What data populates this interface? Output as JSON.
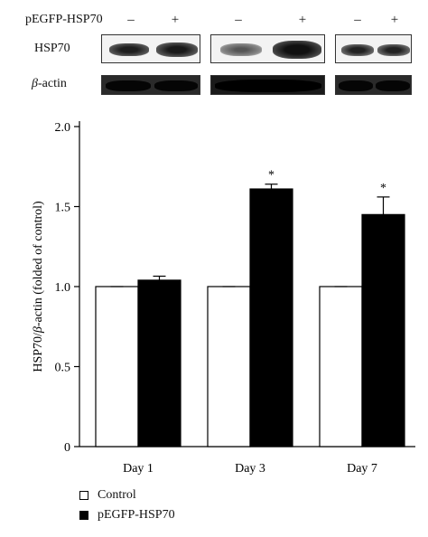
{
  "blot": {
    "row_header_label": "pEGFP-HSP70",
    "signs": [
      "–",
      "+",
      "–",
      "+",
      "–",
      "+"
    ],
    "row_labels": [
      "HSP70",
      "-actin"
    ],
    "beta_symbol": "β"
  },
  "chart_data": {
    "type": "bar",
    "categories": [
      "Day 1",
      "Day 3",
      "Day 7"
    ],
    "series": [
      {
        "name": "Control",
        "values": [
          1.0,
          1.0,
          1.0
        ],
        "errors": [
          0.0,
          0.0,
          0.0
        ],
        "color": "#ffffff"
      },
      {
        "name": "pEGFP-HSP70",
        "values": [
          1.04,
          1.61,
          1.45
        ],
        "errors": [
          0.025,
          0.03,
          0.11
        ],
        "color": "#000000"
      }
    ],
    "significance": [
      "",
      "*",
      "*"
    ],
    "ylabel_parts": [
      "HSP70/",
      "β",
      "-actin (folded of control)"
    ],
    "ylim": [
      0,
      2.0
    ],
    "yticks": [
      0,
      0.5,
      1.0,
      1.5,
      2.0
    ],
    "ytick_labels": [
      "0",
      "0.5",
      "1.0",
      "1.5",
      "2.0"
    ],
    "grid": false,
    "legend_position": "bottom-left"
  }
}
